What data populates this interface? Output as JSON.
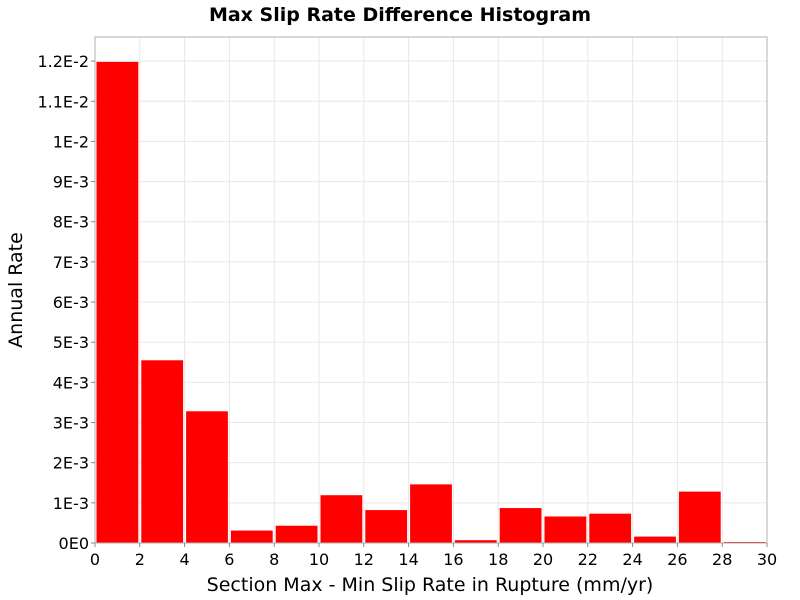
{
  "chart_data": {
    "type": "bar",
    "title": "Max Slip Rate Difference Histogram",
    "xlabel": "Section Max - Min Slip Rate in Rupture (mm/yr)",
    "ylabel": "Annual Rate",
    "xlim": [
      0,
      30
    ],
    "ylim": [
      0,
      0.0126
    ],
    "x_ticks": [
      0,
      2,
      4,
      6,
      8,
      10,
      12,
      14,
      16,
      18,
      20,
      22,
      24,
      26,
      28,
      30
    ],
    "x_tick_labels": [
      "0",
      "2",
      "4",
      "6",
      "8",
      "10",
      "12",
      "14",
      "16",
      "18",
      "20",
      "22",
      "24",
      "26",
      "28",
      "30"
    ],
    "y_ticks": [
      0,
      0.001,
      0.002,
      0.003,
      0.004,
      0.005,
      0.006,
      0.007,
      0.008,
      0.009,
      0.01,
      0.011,
      0.012
    ],
    "y_tick_labels": [
      "0E0",
      "1E-3",
      "2E-3",
      "3E-3",
      "4E-3",
      "5E-3",
      "6E-3",
      "7E-3",
      "8E-3",
      "9E-3",
      "1E-2",
      "1.1E-2",
      "1.2E-2"
    ],
    "bin_width": 2,
    "bin_starts": [
      0,
      2,
      4,
      6,
      8,
      10,
      12,
      14,
      16,
      18,
      20,
      22,
      24,
      26,
      28
    ],
    "values": [
      0.01198,
      0.00455,
      0.00328,
      0.00031,
      0.00043,
      0.00119,
      0.00082,
      0.00146,
      7e-05,
      0.00087,
      0.00066,
      0.00073,
      0.00016,
      0.00128,
      2e-05
    ],
    "bar_color": "#ff0000",
    "grid": true,
    "grid_color": "#e8e8e8",
    "legend": "none"
  }
}
